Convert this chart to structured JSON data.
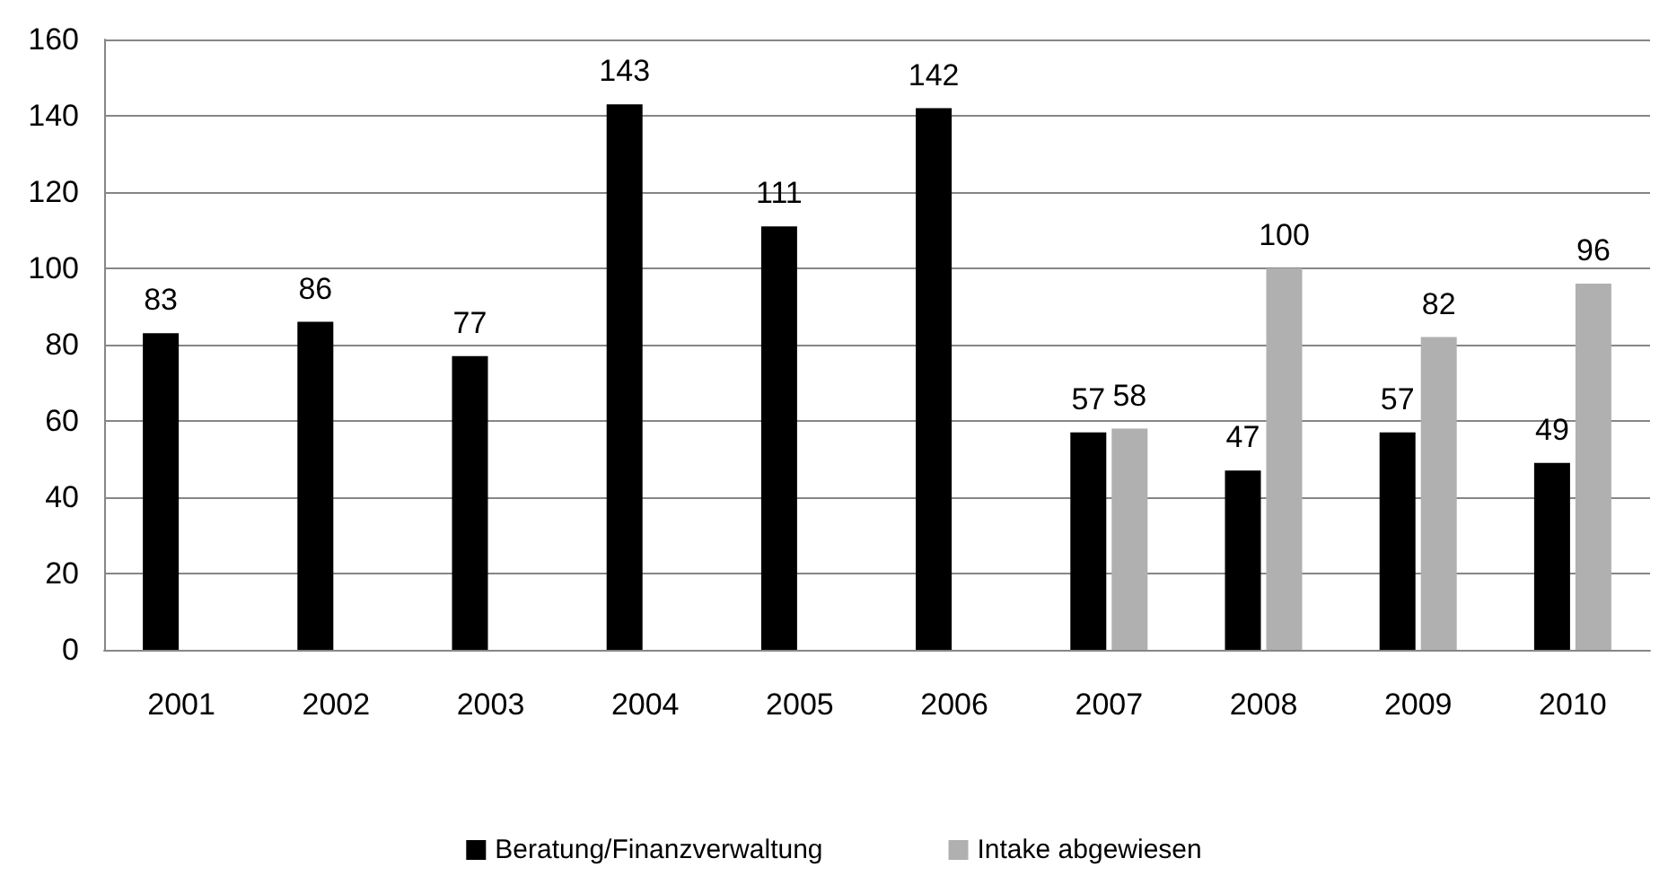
{
  "chart_data": {
    "type": "bar",
    "categories": [
      "2001",
      "2002",
      "2003",
      "2004",
      "2005",
      "2006",
      "2007",
      "2008",
      "2009",
      "2010"
    ],
    "series": [
      {
        "name": "Beratung/Finanzverwaltung",
        "color": "#000000",
        "values": [
          83,
          86,
          77,
          143,
          111,
          142,
          57,
          47,
          57,
          49
        ]
      },
      {
        "name": "Intake abgewiesen",
        "color": "#b0b0b0",
        "values": [
          null,
          null,
          null,
          null,
          null,
          null,
          58,
          100,
          82,
          96
        ]
      }
    ],
    "ylim": [
      0,
      160
    ],
    "yticks": [
      0,
      20,
      40,
      60,
      80,
      100,
      120,
      140,
      160
    ],
    "grid": "y",
    "legend": "bottom",
    "data_labels": true
  }
}
